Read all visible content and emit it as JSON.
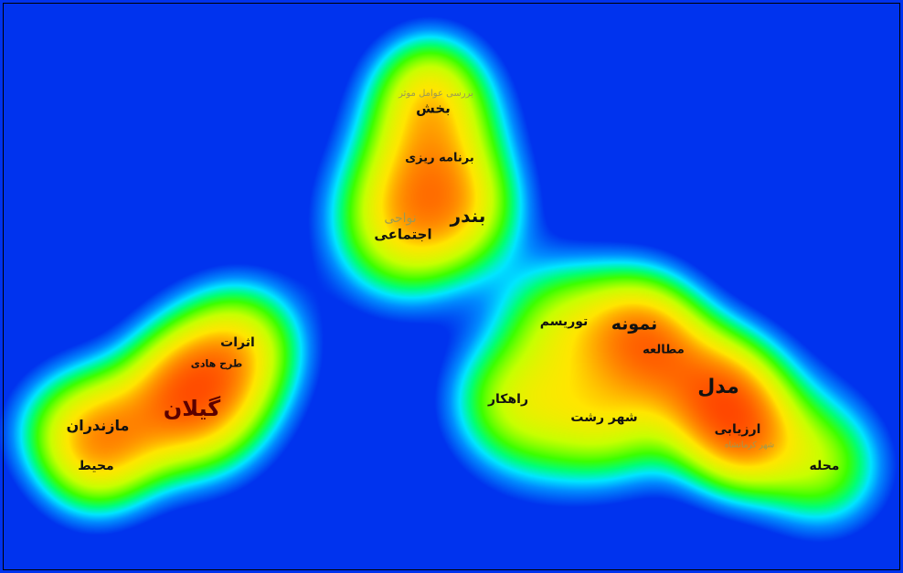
{
  "colors": {
    "background": "#0033ee",
    "low": "#00e5ff",
    "mid": "#33ff00",
    "high": "#ffee00",
    "peak": "#ff2200"
  },
  "terms": [
    {
      "id": "barresi",
      "text": "بررسی عوامل موثر",
      "faint": true
    },
    {
      "id": "bakhsh",
      "text": "بخش"
    },
    {
      "id": "barnameh",
      "text": "برنامه ریزی"
    },
    {
      "id": "bandar",
      "text": "بندر"
    },
    {
      "id": "navahi",
      "text": "نواحی",
      "faint": true
    },
    {
      "id": "ejtemaei",
      "text": "اجتماعی"
    },
    {
      "id": "asarat",
      "text": "اثرات"
    },
    {
      "id": "tarh",
      "text": "طرح هادی"
    },
    {
      "id": "gilan",
      "text": "گیلان"
    },
    {
      "id": "mazandaran",
      "text": "مازندران"
    },
    {
      "id": "mohit",
      "text": "محیط"
    },
    {
      "id": "tourism",
      "text": "توریسم"
    },
    {
      "id": "nemouneh",
      "text": "نمونه"
    },
    {
      "id": "motaleeh",
      "text": "مطالعه"
    },
    {
      "id": "rahkar",
      "text": "راهکار"
    },
    {
      "id": "model",
      "text": "مدل"
    },
    {
      "id": "shahrrasht",
      "text": "شهر رشت"
    },
    {
      "id": "arzyabi",
      "text": "ارزیابی"
    },
    {
      "id": "kermanshah",
      "text": "شهر کرمانشاه",
      "faint": true
    },
    {
      "id": "mahaleh",
      "text": "محله"
    }
  ]
}
